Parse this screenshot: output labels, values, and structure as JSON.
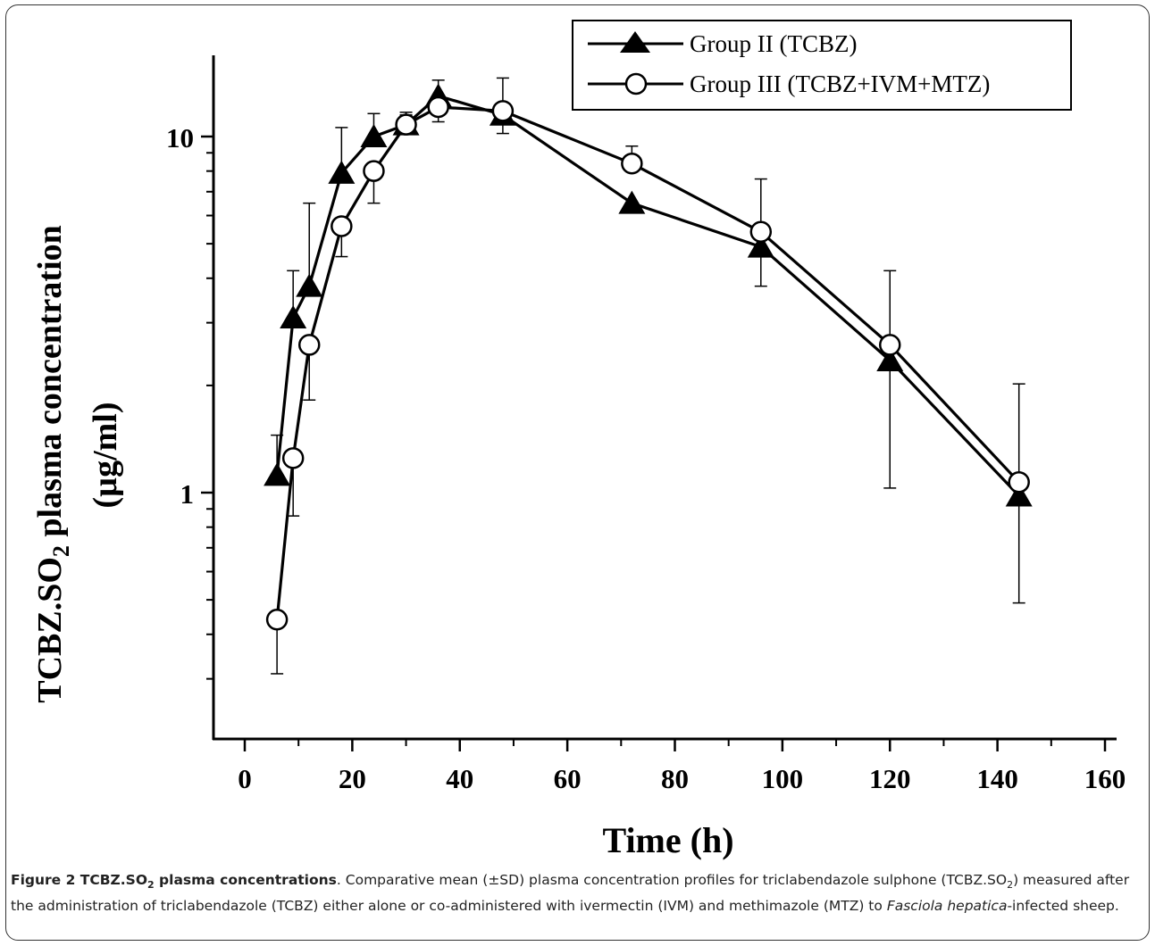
{
  "chart_data": {
    "type": "line",
    "xlabel": "Time (h)",
    "ylabel_main": "TCBZ.SO",
    "ylabel_sub": "2",
    "ylabel_rest": " plasma concentration",
    "ylabel_unit": "(µg/ml)",
    "xlim": [
      -5,
      160
    ],
    "ylim": [
      0.2,
      16
    ],
    "yscale": "log",
    "xticks": [
      0,
      20,
      40,
      60,
      80,
      100,
      120,
      140,
      160
    ],
    "yticks": [
      1,
      10
    ],
    "legend_position": "top-right",
    "series": [
      {
        "name": "Group II (TCBZ)",
        "marker": "filled-triangle",
        "x": [
          6,
          9,
          12,
          18,
          24,
          30,
          36,
          48,
          72,
          96,
          120,
          144
        ],
        "y": [
          1.12,
          3.1,
          3.8,
          7.9,
          10.0,
          10.8,
          13.0,
          11.5,
          6.5,
          4.9,
          2.35,
          0.98
        ],
        "err_upper": [
          1.45,
          4.2,
          6.5,
          10.6,
          11.6,
          11.7,
          14.4,
          11.5,
          6.5,
          4.9,
          2.35,
          0.98
        ],
        "err_lower": [
          1.12,
          3.1,
          3.8,
          7.9,
          10.0,
          10.8,
          13.0,
          11.5,
          6.5,
          3.8,
          2.35,
          0.49
        ]
      },
      {
        "name": "Group III (TCBZ+IVM+MTZ)",
        "marker": "open-circle",
        "x": [
          6,
          9,
          12,
          18,
          24,
          30,
          36,
          48,
          72,
          96,
          120,
          144
        ],
        "y": [
          0.44,
          1.25,
          2.6,
          5.6,
          8.0,
          10.8,
          12.1,
          11.8,
          8.4,
          5.4,
          2.6,
          1.07
        ],
        "err_upper": [
          0.44,
          1.25,
          2.6,
          5.6,
          8.0,
          11.5,
          12.1,
          14.6,
          9.4,
          7.6,
          4.2,
          2.02
        ],
        "err_lower": [
          0.31,
          0.86,
          1.82,
          4.6,
          6.5,
          10.8,
          11.0,
          10.2,
          8.4,
          5.4,
          1.03,
          1.07
        ]
      }
    ]
  },
  "caption": {
    "label": "Figure 2 TCBZ.SO",
    "label_sub": "2",
    "label_rest": " plasma concentrations",
    "text1": ". Comparative mean (±SD) plasma concentration profiles for triclabendazole sulphone (TCBZ.SO",
    "text1_sub": "2",
    "text2": ") measured after the administration of triclabendazole (TCBZ) either alone or co-administered with ivermectin (IVM) and methimazole (MTZ) to ",
    "italic": "Fasciola hepatica",
    "text3": "-infected sheep."
  }
}
